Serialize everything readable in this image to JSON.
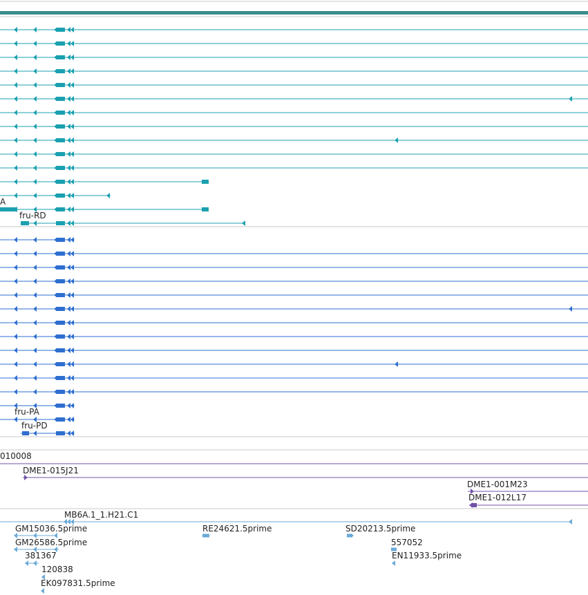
{
  "colors": {
    "top_bar": "#3a8c8c",
    "transcript_a": "#1aa0b0",
    "transcript_b": "#2e6fd0",
    "bac": "#7050a8",
    "est": "#6aaad8",
    "divider": "#c8c8c8",
    "label": "#222222"
  },
  "tracks": {
    "transcripts_a": {
      "labels": [
        "A",
        "fru-RD"
      ]
    },
    "transcripts_b": {
      "labels": [
        "fru-PA",
        "fru-PD"
      ]
    },
    "bac_clones": {
      "labels": [
        "010008",
        "DME1-015J21",
        "DME1-001M23",
        "DME1-012L17"
      ]
    },
    "ests": {
      "labels": [
        "MB6A.1_1.H21.C1",
        "GM15036.5prime",
        "RE24621.5prime",
        "SD20213.5prime",
        "GM26586.5prime",
        "557052",
        "381367",
        "EN11933.5prime",
        "120838",
        "EK097831.5prime"
      ]
    }
  }
}
